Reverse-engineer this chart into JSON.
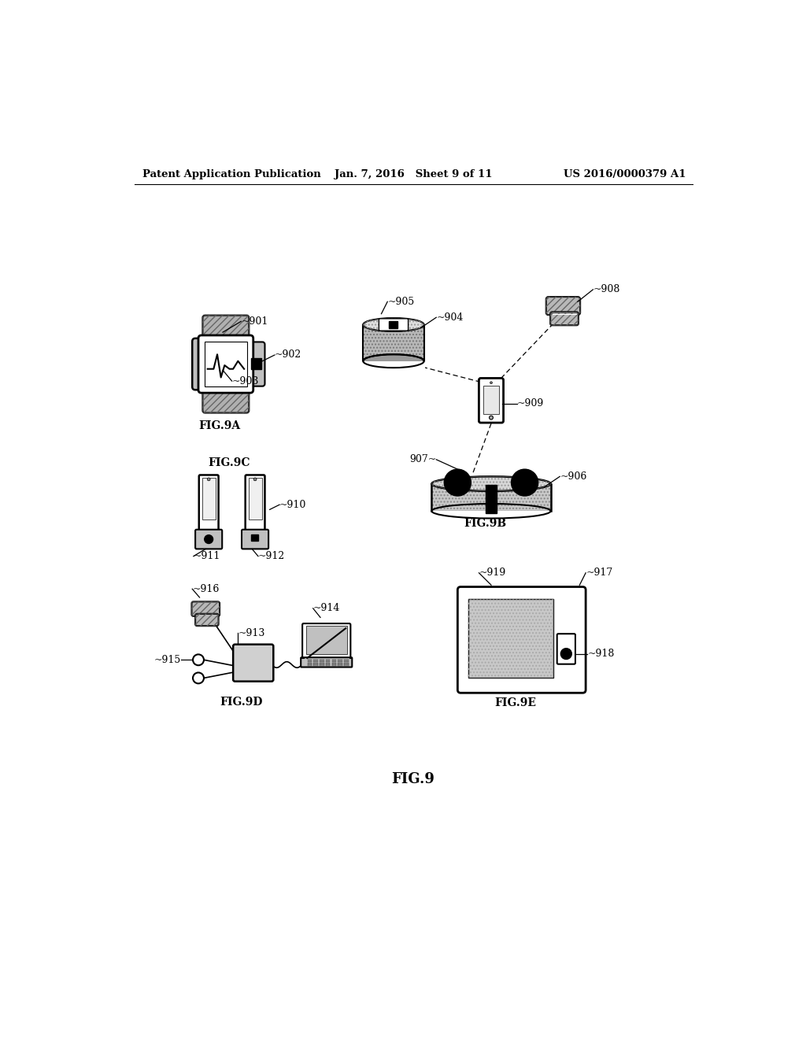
{
  "title": "FIG.9",
  "header_left": "Patent Application Publication",
  "header_mid": "Jan. 7, 2016   Sheet 9 of 11",
  "header_right": "US 2016/0000379 A1",
  "background_color": "#ffffff",
  "text_color": "#000000",
  "gray_light": "#cccccc",
  "gray_mid": "#aaaaaa",
  "gray_dark": "#888888"
}
